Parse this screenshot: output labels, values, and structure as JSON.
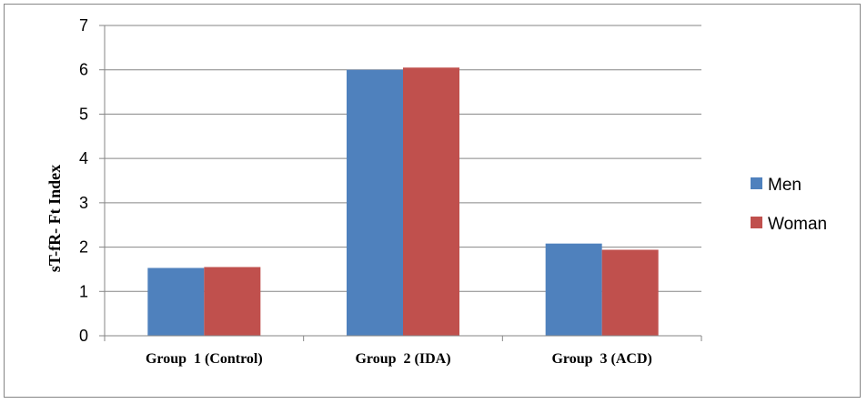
{
  "chart_data": {
    "type": "bar",
    "title": "",
    "xlabel": "",
    "ylabel": "sT-fR- Ft Index",
    "categories": [
      "Group  1 (Control)",
      "Group  2 (IDA)",
      "Group  3 (ACD)"
    ],
    "series": [
      {
        "name": "Men",
        "color": "#4F81BD",
        "values": [
          1.53,
          6.0,
          2.08
        ]
      },
      {
        "name": "Woman",
        "color": "#C0504D",
        "values": [
          1.55,
          6.05,
          1.94
        ]
      }
    ],
    "ylim": [
      0,
      7
    ],
    "yticks": [
      0,
      1,
      2,
      3,
      4,
      5,
      6,
      7
    ],
    "grid": true,
    "legend_position": "right"
  }
}
